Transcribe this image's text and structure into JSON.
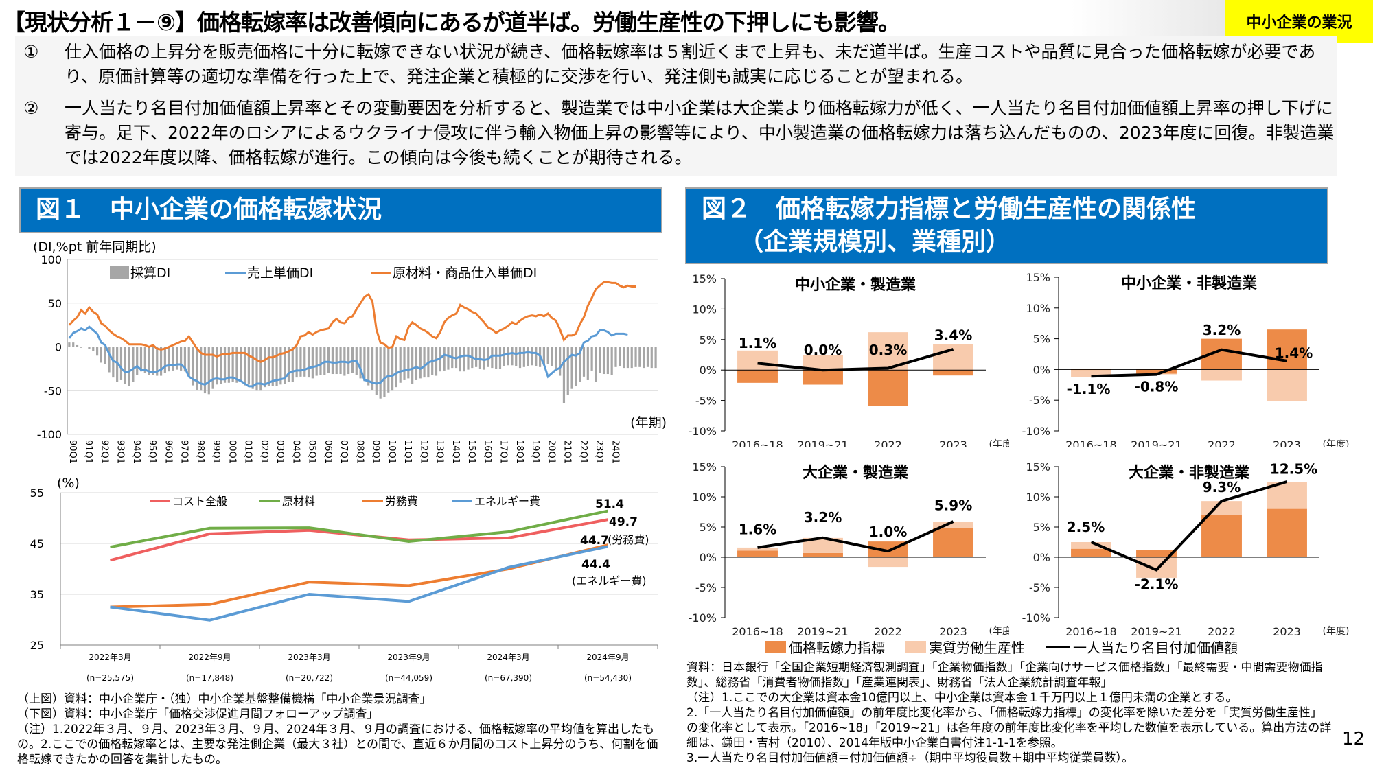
{
  "header": {
    "title": "【現状分析１－⑨】価格転嫁率は改善傾向にあるが道半ば。労働生産性の下押しにも影響。",
    "tag": "中小企業の業況"
  },
  "summary": [
    {
      "num": "①",
      "text": "仕入価格の上昇分を販売価格に十分に転嫁できない状況が続き、価格転嫁率は５割近くまで上昇も、未だ道半ば。生産コストや品質に見合った価格転嫁が必要であり、原価計算等の適切な準備を行った上で、発注企業と積極的に交渉を行い、発注側も誠実に応じることが望まれる。"
    },
    {
      "num": "②",
      "text": "一人当たり名目付加価値額上昇率とその変動要因を分析すると、製造業では中小企業は大企業より価格転嫁力が低く、一人当たり名目付加価値額上昇率の押し下げに寄与。足下、2022年のロシアによるウクライナ侵攻に伴う輸入物価上昇の影響等により、中小製造業の価格転嫁力は落ち込んだものの、2023年度に回復。非製造業では2022年度以降、価格転嫁が進行。この傾向は今後も続くことが期待される。"
    }
  ],
  "figure1": {
    "title": "図１　中小企業の価格転嫁状況",
    "notes": [
      "（上図）資料：中小企業庁・（独）中小企業基盤整備機構「中小企業景況調査」",
      "（下図）資料：中小企業庁「価格交渉促進月間フォローアップ調査」",
      "（注）1.2022年３月、９月、2023年３月、９月、2024年３月、９月の調査における、価格転嫁率の平均値を算出したもの。2.ここでの価格転嫁率とは、主要な発注側企業（最大３社）との間で、直近６か月間のコスト上昇分のうち、何割を価格転嫁できたかの回答を集計したもの。"
    ]
  },
  "figure2": {
    "title_line1": "図２　価格転嫁力指標と労働生産性の関係性",
    "title_line2": "　　（企業規模別、業種別）",
    "legend": [
      "価格転嫁力指標",
      "実質労働生産性",
      "一人当たり名目付加価値額"
    ],
    "notes": [
      "資料：日本銀行「全国企業短期経済観測調査」「企業物価指数」「企業向けサービス価格指数」「最終需要・中間需要物価指数」、総務省「消費者物価指数」「産業連関表」、財務省「法人企業統計調査年報」",
      "（注）1.ここでの大企業は資本金10億円以上、中小企業は資本金１千万円以上１億円未満の企業とする。",
      "2.「一人当たり名目付加価値額」の前年度比変化率から、「価格転嫁力指標」の変化率を除いた差分を「実質労働生産性」の変化率として表示。「2016~18」「2019~21」は各年度の前年度比変化率を平均した数値を表示している。算出方法の詳細は、鎌田・吉村（2010）、2014年版中小企業白書付注1-1-1を参照。",
      "3.一人当たり名目付加価値額＝付加価値額÷（期中平均役員数＋期中平均従業員数）。"
    ]
  },
  "page_number": "12",
  "colors": {
    "figure_title_bg": "#0070c0",
    "tag_bg": "#ffff00",
    "bar_gray": "#a6a6a6",
    "line_blue": "#5b9bd5",
    "line_orange": "#ed7d31",
    "line_red": "#ef5f5f",
    "line_green": "#70ad47",
    "bar_dark_orange": "#ed8b48",
    "bar_light_orange": "#f8cbad"
  },
  "chart_data": [
    {
      "id": "di-timeseries",
      "type": "line",
      "ylabel": "(DI,%pt 前年同期比)",
      "xlabel": "(年期)",
      "ylim": [
        -100,
        100
      ],
      "yticks": [
        100,
        50,
        0,
        -50,
        -100
      ],
      "grid": true,
      "legend": "top",
      "x_tick_labels": [
        "90Q1",
        "91Q1",
        "92Q1",
        "93Q1",
        "94Q1",
        "95Q1",
        "96Q1",
        "97Q1",
        "98Q1",
        "99Q1",
        "00Q1",
        "01Q1",
        "02Q1",
        "03Q1",
        "04Q1",
        "05Q1",
        "06Q1",
        "07Q1",
        "08Q1",
        "09Q1",
        "10Q1",
        "11Q1",
        "12Q1",
        "13Q1",
        "14Q1",
        "15Q1",
        "16Q1",
        "17Q1",
        "18Q1",
        "19Q1",
        "20Q1",
        "21Q1",
        "22Q1",
        "23Q1",
        "24Q1"
      ],
      "series": [
        {
          "name": "採算DI",
          "kind": "bar",
          "color": "#a6a6a6",
          "values": [
            5,
            5,
            2,
            -1,
            0,
            -2,
            -5,
            -10,
            -18,
            -20,
            -29,
            -35,
            -40,
            -38,
            -42,
            -45,
            -40,
            -32,
            -28,
            -30,
            -32,
            -32,
            -33,
            -33,
            -30,
            -28,
            -27,
            -26,
            -27,
            -28,
            -34,
            -44,
            -49,
            -50,
            -53,
            -54,
            -48,
            -43,
            -42,
            -41,
            -41,
            -40,
            -41,
            -40,
            -44,
            -43,
            -48,
            -50,
            -50,
            -46,
            -45,
            -45,
            -45,
            -43,
            -42,
            -40,
            -40,
            -35,
            -34,
            -34,
            -35,
            -36,
            -33,
            -32,
            -32,
            -30,
            -31,
            -31,
            -31,
            -33,
            -31,
            -30,
            -32,
            -36,
            -39,
            -44,
            -49,
            -55,
            -59,
            -57,
            -52,
            -50,
            -46,
            -41,
            -38,
            -36,
            -42,
            -38,
            -36,
            -35,
            -35,
            -32,
            -33,
            -28,
            -27,
            -26,
            -24,
            -24,
            -28,
            -28,
            -26,
            -24,
            -23,
            -25,
            -26,
            -23,
            -24,
            -25,
            -25,
            -22,
            -21,
            -21,
            -22,
            -24,
            -23,
            -22,
            -21,
            -22,
            -23,
            -21,
            -20,
            -22,
            -27,
            -33,
            -64,
            -55,
            -48,
            -45,
            -40,
            -34,
            -38,
            -27,
            -40,
            -30,
            -31,
            -31,
            -32,
            -23,
            -22,
            -24,
            -24,
            -24,
            -23,
            -23,
            -24,
            -23,
            -24,
            -24
          ]
        },
        {
          "name": "売上単価DI",
          "kind": "line",
          "color": "#5b9bd5",
          "values": [
            10,
            16,
            18,
            21,
            19,
            23,
            19,
            15,
            5,
            2,
            -8,
            -16,
            -18,
            -24,
            -29,
            -28,
            -25,
            -22,
            -26,
            -26,
            -28,
            -29,
            -28,
            -26,
            -22,
            -21,
            -21,
            -20,
            -20,
            -24,
            -34,
            -37,
            -39,
            -42,
            -43,
            -40,
            -37,
            -36,
            -37,
            -37,
            -35,
            -35,
            -37,
            -39,
            -42,
            -45,
            -45,
            -42,
            -42,
            -43,
            -41,
            -39,
            -38,
            -37,
            -36,
            -30,
            -28,
            -27,
            -27,
            -26,
            -24,
            -23,
            -22,
            -20,
            -17,
            -17,
            -18,
            -18,
            -17,
            -17,
            -18,
            -16,
            -16,
            -25,
            -38,
            -39,
            -41,
            -42,
            -41,
            -36,
            -33,
            -33,
            -30,
            -28,
            -27,
            -26,
            -25,
            -23,
            -25,
            -22,
            -18,
            -16,
            -15,
            -13,
            -9,
            -10,
            -12,
            -13,
            -11,
            -10,
            -10,
            -12,
            -14,
            -14,
            -15,
            -14,
            -10,
            -10,
            -10,
            -9,
            -8,
            -7,
            -8,
            -7,
            -7,
            -6,
            -7,
            -7,
            -10,
            -20,
            -34,
            -30,
            -26,
            -24,
            -17,
            -13,
            -9,
            -10,
            -7,
            5,
            7,
            12,
            13,
            19,
            19,
            17,
            13,
            15,
            15,
            15,
            14
          ]
        },
        {
          "name": "原材料・商品仕入単価DI",
          "kind": "line",
          "color": "#ed7d31",
          "values": [
            25,
            30,
            34,
            42,
            38,
            45,
            40,
            37,
            27,
            24,
            19,
            15,
            12,
            10,
            7,
            3,
            3,
            3,
            3,
            2,
            0,
            2,
            -2,
            -3,
            -2,
            0,
            2,
            4,
            6,
            7,
            12,
            5,
            -2,
            -7,
            -9,
            -9,
            -9,
            -11,
            -9,
            -8,
            -8,
            -7,
            -7,
            -7,
            -7,
            -10,
            -12,
            -15,
            -17,
            -15,
            -12,
            -12,
            -10,
            -8,
            -7,
            -5,
            -3,
            2,
            12,
            13,
            17,
            14,
            17,
            19,
            20,
            21,
            28,
            32,
            28,
            27,
            33,
            35,
            43,
            50,
            57,
            60,
            52,
            20,
            5,
            3,
            -1,
            0,
            12,
            9,
            8,
            22,
            28,
            25,
            21,
            19,
            16,
            12,
            10,
            17,
            28,
            33,
            36,
            38,
            48,
            45,
            43,
            40,
            38,
            33,
            28,
            22,
            20,
            16,
            19,
            21,
            24,
            28,
            26,
            30,
            33,
            35,
            36,
            35,
            37,
            35,
            38,
            33,
            30,
            20,
            8,
            13,
            13,
            15,
            26,
            34,
            47,
            56,
            66,
            70,
            74,
            74,
            73,
            73,
            70,
            68,
            70,
            69,
            69
          ]
        }
      ]
    },
    {
      "id": "pass-through-rate",
      "type": "line",
      "ylabel": "(%)",
      "ylim": [
        25,
        55
      ],
      "yticks": [
        55,
        45,
        35,
        25
      ],
      "grid": true,
      "legend": "top",
      "categories": [
        "2022年3月",
        "2022年9月",
        "2023年3月",
        "2023年9月",
        "2024年3月",
        "2024年9月"
      ],
      "sample_sizes": [
        "(n=25,575)",
        "(n=17,848)",
        "(n=20,722)",
        "(n=44,059)",
        "(n=67,390)",
        "(n=54,430)"
      ],
      "series": [
        {
          "name": "コスト全般",
          "color": "#ef5f5f",
          "values": [
            41.7,
            46.9,
            47.6,
            45.7,
            46.1,
            49.7
          ]
        },
        {
          "name": "原材料",
          "color": "#70ad47",
          "values": [
            44.3,
            48.0,
            48.1,
            45.4,
            47.3,
            51.4
          ]
        },
        {
          "name": "労務費",
          "color": "#ed7d31",
          "values": [
            32.5,
            33.0,
            37.4,
            36.7,
            40.0,
            44.7
          ]
        },
        {
          "name": "エネルギー費",
          "color": "#5b9bd5",
          "values": [
            32.5,
            29.9,
            35.0,
            33.6,
            40.3,
            44.4
          ]
        }
      ],
      "annotations": [
        {
          "text": "51.4",
          "series": "原材料"
        },
        {
          "text": "49.7",
          "series": "コスト全般"
        },
        {
          "text": "44.7",
          "label": "(労務費)",
          "series": "労務費"
        },
        {
          "text": "44.4",
          "label": "(エネルギー費)",
          "series": "エネルギー費"
        }
      ]
    },
    {
      "id": "sme-manufacturing",
      "type": "bar",
      "title": "中小企業・製造業",
      "categories": [
        "2016~18",
        "2019~21",
        "2022",
        "2023"
      ],
      "x_suffix": "(年度)",
      "ylim": [
        -10,
        15
      ],
      "yticks": [
        "15%",
        "10%",
        "5%",
        "0%",
        "-5%",
        "-10%"
      ],
      "series": [
        {
          "name": "価格転嫁力指標",
          "kind": "bar",
          "values": [
            -2.1,
            -2.4,
            -5.9,
            -0.9
          ]
        },
        {
          "name": "実質労働生産性",
          "kind": "bar",
          "values": [
            3.2,
            2.4,
            6.2,
            4.3
          ]
        },
        {
          "name": "一人当たり名目付加価値額",
          "kind": "line",
          "values": [
            1.1,
            0.0,
            0.3,
            3.4
          ]
        }
      ],
      "data_labels": [
        "1.1%",
        "0.0%",
        "0.3%",
        "3.4%"
      ]
    },
    {
      "id": "sme-nonmanufacturing",
      "type": "bar",
      "title": "中小企業・非製造業",
      "categories": [
        "2016~18",
        "2019~21",
        "2022",
        "2023"
      ],
      "x_suffix": "(年度)",
      "ylim": [
        -10,
        15
      ],
      "yticks": [
        "15%",
        "10%",
        "5%",
        "0%",
        "-5%",
        "-10%"
      ],
      "series": [
        {
          "name": "価格転嫁力指標",
          "kind": "bar",
          "values": [
            -0.1,
            -0.7,
            5.0,
            6.5
          ]
        },
        {
          "name": "実質労働生産性",
          "kind": "bar",
          "values": [
            -1.1,
            -0.1,
            -1.8,
            -5.1
          ]
        },
        {
          "name": "一人当たり名目付加価値額",
          "kind": "line",
          "values": [
            -1.1,
            -0.8,
            3.2,
            1.4
          ]
        }
      ],
      "data_labels": [
        "-1.1%",
        "-0.8%",
        "3.2%",
        "1.4%"
      ]
    },
    {
      "id": "large-manufacturing",
      "type": "bar",
      "title": "大企業・製造業",
      "categories": [
        "2016~18",
        "2019~21",
        "2022",
        "2023"
      ],
      "x_suffix": "(年度)",
      "ylim": [
        -10,
        15
      ],
      "yticks": [
        "15%",
        "10%",
        "5%",
        "0%",
        "-5%",
        "-10%"
      ],
      "series": [
        {
          "name": "価格転嫁力指標",
          "kind": "bar",
          "values": [
            1.1,
            0.7,
            2.6,
            4.8
          ]
        },
        {
          "name": "実質労働生産性",
          "kind": "bar",
          "values": [
            0.5,
            2.5,
            -1.6,
            1.1
          ]
        },
        {
          "name": "一人当たり名目付加価値額",
          "kind": "line",
          "values": [
            1.6,
            3.2,
            1.0,
            5.9
          ]
        }
      ],
      "data_labels": [
        "1.6%",
        "3.2%",
        "1.0%",
        "5.9%"
      ]
    },
    {
      "id": "large-nonmanufacturing",
      "type": "bar",
      "title": "大企業・非製造業",
      "categories": [
        "2016~18",
        "2019~21",
        "2022",
        "2023"
      ],
      "x_suffix": "(年度)",
      "ylim": [
        -10,
        15
      ],
      "yticks": [
        "15%",
        "10%",
        "5%",
        "0%",
        "-5%",
        "-10%"
      ],
      "series": [
        {
          "name": "価格転嫁力指標",
          "kind": "bar",
          "values": [
            1.4,
            1.2,
            7.0,
            8.0
          ]
        },
        {
          "name": "実質労働生産性",
          "kind": "bar",
          "values": [
            1.1,
            -3.4,
            2.3,
            4.5
          ]
        },
        {
          "name": "一人当たり名目付加価値額",
          "kind": "line",
          "values": [
            2.5,
            -2.1,
            9.3,
            12.5
          ]
        }
      ],
      "data_labels": [
        "2.5%",
        "-2.1%",
        "9.3%",
        "12.5%"
      ]
    }
  ]
}
